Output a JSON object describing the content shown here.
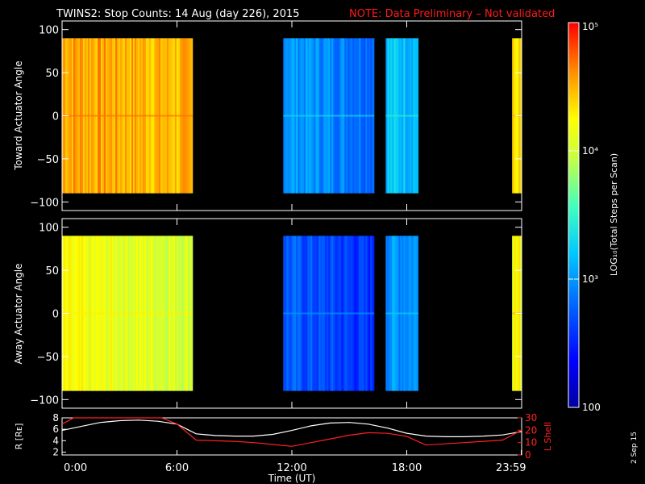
{
  "header": {
    "title": "TWINS2: Stop Counts: 14 Aug (day 226), 2015",
    "note": "NOTE: Data Preliminary – Not validated",
    "note_color": "#ff1a1a"
  },
  "side_label": "2 Sep 15",
  "colors": {
    "background": "#000000",
    "axis": "#ffffff",
    "r_line": "#ffffff",
    "lshell_line": "#ff2020"
  },
  "chart_data": [
    {
      "type": "heatmap",
      "panel": "toward",
      "ylabel": "Toward Actuator Angle",
      "ylim": [
        -110,
        110
      ],
      "yticks": [
        "100",
        "50",
        "0",
        "−50",
        "−100"
      ],
      "ytick_values": [
        100,
        50,
        0,
        -50,
        -100
      ],
      "xlim_hours": [
        0,
        24
      ],
      "data_y_range": [
        -90,
        90
      ],
      "scale": "log",
      "segments": [
        {
          "start": 0.0,
          "end": 6.82,
          "level": 4.45
        },
        {
          "start": 11.55,
          "end": 16.3,
          "level": 3.05
        },
        {
          "start": 16.9,
          "end": 18.6,
          "level": 3.2
        },
        {
          "start": 23.5,
          "end": 24.0,
          "level": 4.3
        }
      ]
    },
    {
      "type": "heatmap",
      "panel": "away",
      "ylabel": "Away Actuator Angle",
      "ylim": [
        -110,
        110
      ],
      "yticks": [
        "100",
        "50",
        "0",
        "−50",
        "−100"
      ],
      "ytick_values": [
        100,
        50,
        0,
        -50,
        -100
      ],
      "xlim_hours": [
        0,
        24
      ],
      "data_y_range": [
        -90,
        90
      ],
      "scale": "log",
      "segments": [
        {
          "start": 0.0,
          "end": 6.82,
          "level": 4.05
        },
        {
          "start": 11.55,
          "end": 16.3,
          "level": 2.75
        },
        {
          "start": 16.9,
          "end": 18.6,
          "level": 3.0
        },
        {
          "start": 23.5,
          "end": 24.0,
          "level": 4.3
        }
      ]
    },
    {
      "type": "line",
      "panel": "orbit",
      "ylabel_left": "R [Rᴇ]",
      "ylabel_right": "L Shell",
      "ylim_left": [
        1.5,
        8
      ],
      "ylim_right": [
        0,
        30
      ],
      "yticks_left": [
        "8",
        "6",
        "4",
        "2"
      ],
      "ytick_left_values": [
        8,
        6,
        4,
        2
      ],
      "yticks_right": [
        "30",
        "20",
        "10",
        "0"
      ],
      "ytick_right_values": [
        30,
        20,
        10,
        0
      ],
      "xlabel": "Time (UT)",
      "xticks": [
        "0:00",
        "6:00",
        "12:00",
        "18:00",
        "23:59"
      ],
      "xtick_values": [
        0,
        6,
        12,
        18,
        23.98
      ],
      "series": [
        {
          "name": "R",
          "axis": "left",
          "x": [
            0,
            1,
            2,
            3,
            4,
            5,
            6,
            7,
            8,
            9,
            10,
            11,
            12,
            13,
            14,
            15,
            16,
            17,
            18,
            19,
            20,
            21,
            22,
            23,
            24
          ],
          "y": [
            5.8,
            6.5,
            7.2,
            7.5,
            7.6,
            7.4,
            6.9,
            5.2,
            4.9,
            4.8,
            4.8,
            5.1,
            5.8,
            6.6,
            7.1,
            7.2,
            6.9,
            6.2,
            5.3,
            4.8,
            4.7,
            4.7,
            4.8,
            5.0,
            5.6
          ]
        },
        {
          "name": "L Shell",
          "axis": "right",
          "x": [
            0,
            0.6,
            1,
            5.2,
            6,
            7,
            8,
            9,
            10,
            11,
            12,
            13,
            14,
            15,
            16,
            17,
            18,
            19,
            20,
            21,
            22,
            23,
            24
          ],
          "y": [
            25,
            31,
            31,
            31,
            25,
            12,
            11.5,
            11,
            10,
            8.5,
            7,
            10,
            13,
            16,
            18,
            17.5,
            15,
            8,
            9,
            10,
            11,
            12,
            20
          ]
        }
      ]
    },
    {
      "type": "colorbar",
      "label": "LOG₁₀(Total Steps per Scan)",
      "scale": "log",
      "range": [
        100,
        100000
      ],
      "tick_labels": [
        "10⁵",
        "10⁴",
        "10³",
        "100"
      ],
      "tick_values": [
        100000,
        10000,
        1000,
        100
      ]
    }
  ]
}
